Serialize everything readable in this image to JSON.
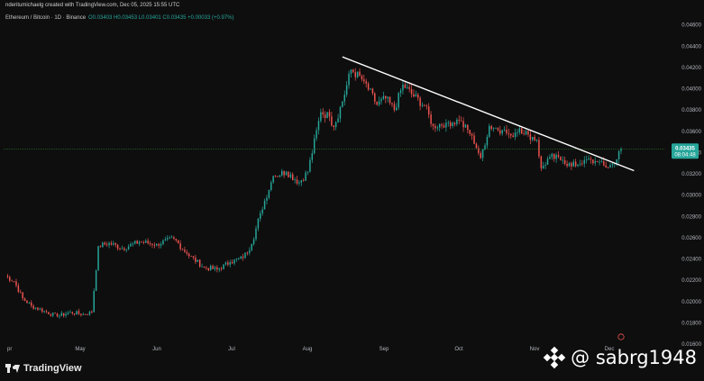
{
  "header": {
    "title": "nderitumichaelg created with TradingView.com, Dec 05, 2025 15:55 UTC",
    "symbol": "Ethereum / Bitcoin · 1D · Binance",
    "ohlc": "O0.03403 H0.03453 L0.03401 C0.03435 +0.00033 (+0.97%)"
  },
  "price_label": {
    "price": "0.03435",
    "countdown": "08:04:48"
  },
  "branding": {
    "logo_text": "TradingView",
    "watermark_text": "@ sabrg1948"
  },
  "colors": {
    "background": "#0e0e0e",
    "up": "#26a69a",
    "down": "#ef5350",
    "trendline": "#ffffff",
    "price_line": "#2e7d32",
    "price_badge": "#26a69a"
  },
  "chart_data": {
    "type": "candlestick",
    "title": "Ethereum / Bitcoin · 1D · Binance",
    "x_ticks": [
      "pr",
      "May",
      "Jun",
      "Jul",
      "Aug",
      "Sep",
      "Oct",
      "Nov",
      "Dec"
    ],
    "y_ticks": [
      "0.04600",
      "0.04400",
      "0.04200",
      "0.04000",
      "0.03800",
      "0.03600",
      "0.03400",
      "0.03200",
      "0.03000",
      "0.02800",
      "0.02600",
      "0.02400",
      "0.02200",
      "0.02000",
      "0.01800",
      "0.01600"
    ],
    "ylim": [
      0.0155,
      0.0465
    ],
    "grid": false,
    "last_close": 0.03435,
    "anchor_closes": [
      [
        0,
        0.0224
      ],
      [
        4,
        0.0219
      ],
      [
        8,
        0.0203
      ],
      [
        12,
        0.0196
      ],
      [
        18,
        0.0191
      ],
      [
        24,
        0.0186
      ],
      [
        30,
        0.019
      ],
      [
        36,
        0.0188
      ],
      [
        40,
        0.019
      ],
      [
        43,
        0.0252
      ],
      [
        48,
        0.0255
      ],
      [
        54,
        0.025
      ],
      [
        62,
        0.0256
      ],
      [
        70,
        0.0254
      ],
      [
        78,
        0.0259
      ],
      [
        84,
        0.0245
      ],
      [
        92,
        0.0232
      ],
      [
        98,
        0.023
      ],
      [
        104,
        0.0237
      ],
      [
        110,
        0.0241
      ],
      [
        114,
        0.0254
      ],
      [
        118,
        0.0283
      ],
      [
        124,
        0.0318
      ],
      [
        130,
        0.0322
      ],
      [
        136,
        0.0312
      ],
      [
        140,
        0.0322
      ],
      [
        146,
        0.0378
      ],
      [
        150,
        0.0374
      ],
      [
        152,
        0.0364
      ],
      [
        156,
        0.0388
      ],
      [
        160,
        0.0418
      ],
      [
        166,
        0.0407
      ],
      [
        172,
        0.0385
      ],
      [
        176,
        0.0391
      ],
      [
        180,
        0.038
      ],
      [
        184,
        0.0404
      ],
      [
        188,
        0.0395
      ],
      [
        194,
        0.0384
      ],
      [
        198,
        0.0365
      ],
      [
        204,
        0.0368
      ],
      [
        210,
        0.037
      ],
      [
        216,
        0.0356
      ],
      [
        220,
        0.0335
      ],
      [
        224,
        0.0365
      ],
      [
        230,
        0.0361
      ],
      [
        234,
        0.0356
      ],
      [
        238,
        0.0363
      ],
      [
        242,
        0.0357
      ],
      [
        246,
        0.0352
      ],
      [
        248,
        0.0325
      ],
      [
        252,
        0.0336
      ],
      [
        258,
        0.0333
      ],
      [
        262,
        0.0327
      ],
      [
        268,
        0.0333
      ],
      [
        274,
        0.0331
      ],
      [
        278,
        0.0326
      ],
      [
        282,
        0.033
      ],
      [
        285,
        0.03435
      ]
    ],
    "trendline": [
      [
        156,
        0.043
      ],
      [
        291,
        0.0323
      ]
    ]
  }
}
